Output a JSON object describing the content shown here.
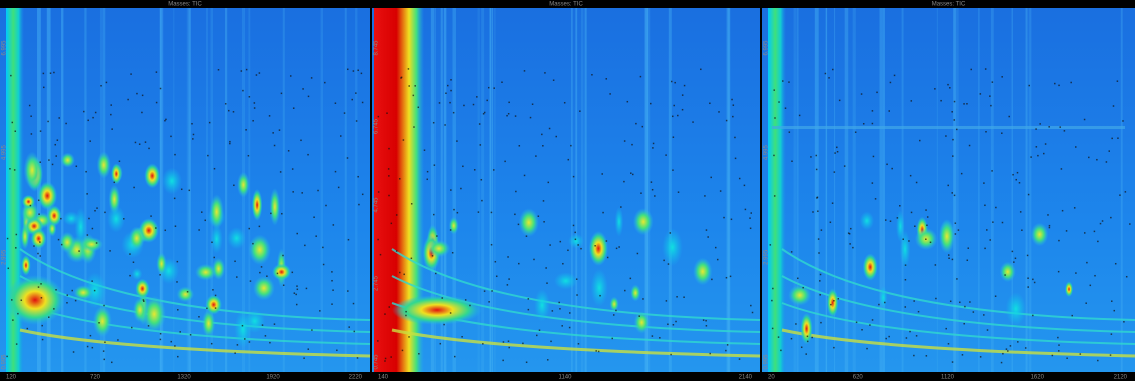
{
  "panels": [
    {
      "title": "Masses: TIC",
      "x_labels": [
        "120",
        "720",
        "1320",
        "1920",
        "2220"
      ],
      "y_labels": [
        "6.995",
        "4.995",
        "2.995",
        "0.995"
      ]
    },
    {
      "title": "Masses: TIC",
      "x_labels": [
        "140",
        "1140",
        "2140"
      ],
      "y_labels": [
        "8.745",
        "6.745",
        "4.745",
        "2.745",
        "0.745"
      ]
    },
    {
      "title": "Masses: TIC",
      "x_labels": [
        "20",
        "620",
        "1120",
        "1620",
        "2120"
      ],
      "y_labels": [
        "6.995",
        "4.995",
        "2.995",
        "0.995"
      ]
    }
  ]
}
